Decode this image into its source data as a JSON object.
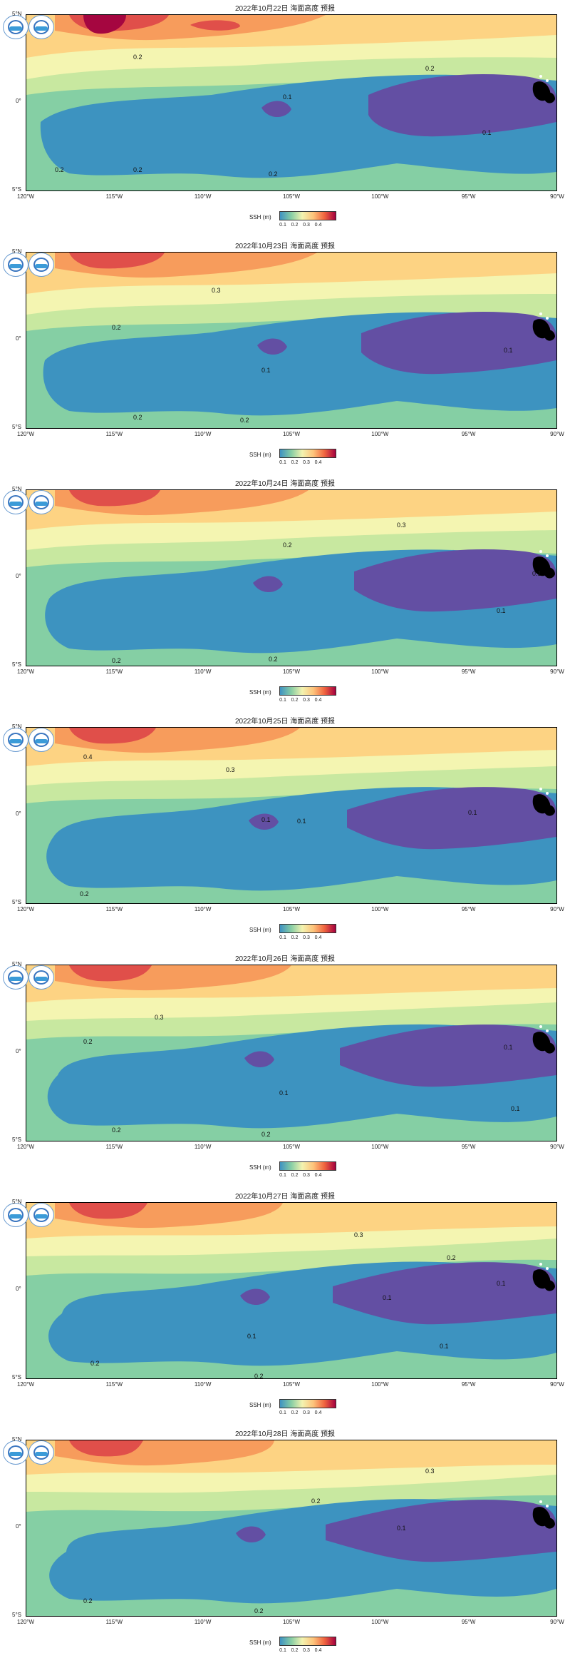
{
  "panels": [
    {
      "title": "2022年10月22日 海面高度 预报"
    },
    {
      "title": "2022年10月23日 海面高度 预报"
    },
    {
      "title": "2022年10月24日 海面高度 预报"
    },
    {
      "title": "2022年10月25日 海面高度 预报"
    },
    {
      "title": "2022年10月26日 海面高度 预报"
    },
    {
      "title": "2022年10月27日 海面高度 预报"
    },
    {
      "title": "2022年10月28日 海面高度 预报"
    }
  ],
  "axes": {
    "lat_labels": [
      "5°N",
      "0°",
      "5°S"
    ],
    "lon_labels": [
      "120°W",
      "115°W",
      "110°W",
      "105°W",
      "100°W",
      "95°W",
      "90°W"
    ]
  },
  "colorbar": {
    "label": "SSH (m)",
    "ticks": [
      "0.1",
      "0.2",
      "0.3",
      "0.4"
    ],
    "colors": [
      "#3e92c2",
      "#86cda5",
      "#f3f3b0",
      "#fdc37a",
      "#f0643f",
      "#a5003f"
    ]
  },
  "contour_labels": [
    "0.1",
    "0.2",
    "0.3",
    "0.4"
  ],
  "palette": {
    "lowest": "#634fa3",
    "low": "#3d93c0",
    "mid_low": "#85cfa4",
    "mid": "#c8e8a0",
    "mid_high": "#f4f5b1",
    "high": "#fdd383",
    "higher": "#f79c5c",
    "very_high": "#e04f4a",
    "peak": "#a50640",
    "land": "#000000"
  }
}
